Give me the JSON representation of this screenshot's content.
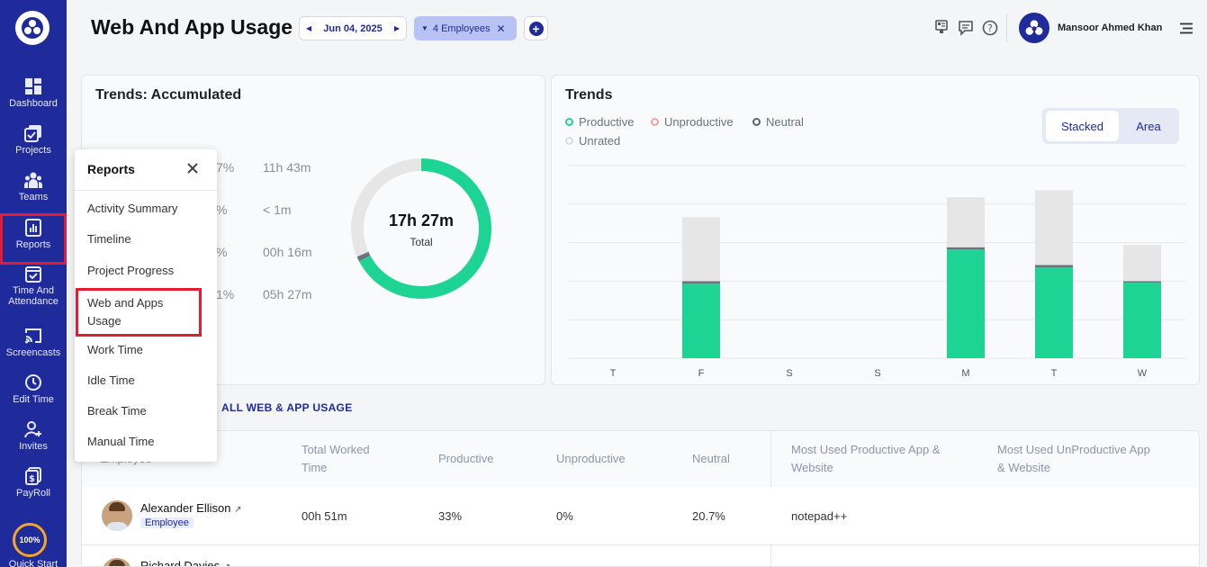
{
  "sidebar": {
    "items": [
      {
        "label": "Dashboard",
        "icon": "dashboard-icon"
      },
      {
        "label": "Projects",
        "icon": "projects-icon"
      },
      {
        "label": "Teams",
        "icon": "teams-icon"
      },
      {
        "label": "Reports",
        "icon": "reports-icon"
      },
      {
        "label": "Time And Attendance",
        "icon": "calendar-check-icon"
      },
      {
        "label": "Screencasts",
        "icon": "screencast-icon"
      },
      {
        "label": "Edit Time",
        "icon": "clock-icon"
      },
      {
        "label": "Invites",
        "icon": "user-plus-icon"
      },
      {
        "label": "PayRoll",
        "icon": "payroll-icon"
      }
    ],
    "quick_start": {
      "percent": "100%",
      "label": "Quick Start"
    }
  },
  "header": {
    "title": "Web And App Usage",
    "date": "Jun 04, 2025",
    "employees_filter": "4 Employees",
    "user_name": "Mansoor Ahmed Khan"
  },
  "accumulated": {
    "title": "Trends: Accumulated",
    "rows": [
      {
        "pct": "7%",
        "time": "11h 43m"
      },
      {
        "pct": "%",
        "time": "< 1m"
      },
      {
        "pct": "%",
        "time": "00h 16m"
      },
      {
        "pct": "1%",
        "time": "05h 27m"
      }
    ],
    "donut_total": "17h 27m",
    "donut_label": "Total"
  },
  "trends": {
    "title": "Trends",
    "legend": [
      {
        "label": "Productive",
        "color": "#1ed494"
      },
      {
        "label": "Unproductive",
        "color": "#f2a3a3"
      },
      {
        "label": "Neutral",
        "color": "#5b6474"
      },
      {
        "label": "Unrated",
        "color": "#dddddd"
      }
    ],
    "toggle": {
      "stacked": "Stacked",
      "area": "Area"
    }
  },
  "chart_data": {
    "type": "bar",
    "stacked": true,
    "categories": [
      "T",
      "F",
      "S",
      "S",
      "M",
      "T",
      "W"
    ],
    "series": [
      {
        "name": "Productive",
        "color": "#1ed494",
        "values": [
          0,
          0.97,
          0,
          0,
          1.41,
          1.18,
          0.98
        ]
      },
      {
        "name": "Neutral",
        "color": "#6b7280",
        "values": [
          0,
          0.03,
          0,
          0,
          0.03,
          0.03,
          0.02
        ]
      },
      {
        "name": "Unrated",
        "color": "#e6e6e6",
        "values": [
          0,
          0.83,
          0,
          0,
          0.65,
          0.97,
          0.47
        ]
      }
    ],
    "ylim": [
      0,
      2.5
    ],
    "grid": true,
    "legend_placement": "top-left"
  },
  "table": {
    "link": "ALL WEB & APP USAGE",
    "headers": {
      "employee": "Employee",
      "total_worked": "Total Worked Time",
      "productive": "Productive",
      "unproductive": "Unproductive",
      "neutral": "Neutral",
      "most_productive": "Most Used Productive App & Website",
      "most_unproductive": "Most Used UnProductive App & Website"
    },
    "rows": [
      {
        "name": "Alexander Ellison",
        "role": "Employee",
        "total": "00h 51m",
        "productive": "33%",
        "unproductive": "0%",
        "neutral": "20.7%",
        "top_productive": "notepad++",
        "top_unproductive": ""
      },
      {
        "name": "Richard Davies",
        "role": "",
        "total": "",
        "productive": "",
        "unproductive": "",
        "neutral": "",
        "top_productive": "",
        "top_unproductive": ""
      }
    ]
  },
  "popup": {
    "title": "Reports",
    "items": [
      "Activity Summary",
      "Timeline",
      "Project Progress",
      "Web and Apps Usage",
      "Work Time",
      "Idle Time",
      "Break Time",
      "Manual Time"
    ]
  }
}
